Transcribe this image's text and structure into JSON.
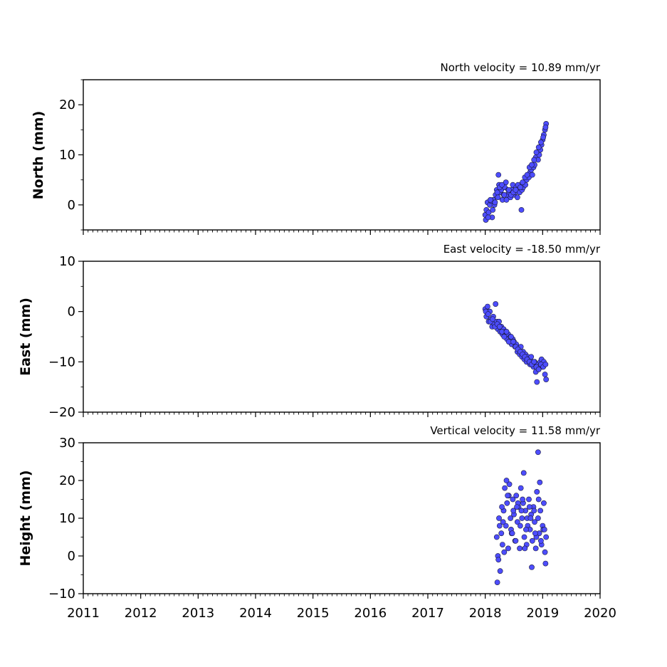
{
  "chart_data": [
    {
      "type": "scatter",
      "id": "north",
      "ylabel": "North (mm)",
      "annotation": "North velocity = 10.89 mm/yr",
      "xlim": [
        2011,
        2020
      ],
      "ylim": [
        -5,
        25
      ],
      "yticks": [
        0,
        10,
        20
      ],
      "xticks": [
        2011,
        2012,
        2013,
        2014,
        2015,
        2016,
        2017,
        2018,
        2019,
        2020
      ],
      "show_xtick_labels": false,
      "marker_color": "#4d4dff",
      "series": [
        {
          "x": [
            2018.0,
            2018.02,
            2018.04,
            2018.06,
            2018.08,
            2018.1,
            2018.12,
            2018.14,
            2018.16,
            2018.18,
            2018.2,
            2018.22,
            2018.24,
            2018.26,
            2018.28,
            2018.3,
            2018.32,
            2018.34,
            2018.36,
            2018.38,
            2018.4,
            2018.42,
            2018.44,
            2018.46,
            2018.48,
            2018.5,
            2018.52,
            2018.54,
            2018.56,
            2018.58,
            2018.6,
            2018.62,
            2018.64,
            2018.66,
            2018.68,
            2018.7,
            2018.72,
            2018.74,
            2018.76,
            2018.78,
            2018.8,
            2018.82,
            2018.84,
            2018.86,
            2018.88,
            2018.9,
            2018.92,
            2018.94,
            2018.96,
            2018.98,
            2019.0,
            2019.02,
            2019.04,
            2019.06,
            2018.01,
            2018.05,
            2018.09,
            2018.13,
            2018.17,
            2018.21,
            2018.25,
            2018.29,
            2018.33,
            2018.37,
            2018.41,
            2018.45,
            2018.49,
            2018.53,
            2018.57,
            2018.61,
            2018.65,
            2018.69,
            2018.73,
            2018.77,
            2018.81,
            2018.85,
            2018.89,
            2018.93,
            2018.97,
            2019.01,
            2019.05,
            2018.23,
            2018.63
          ],
          "y": [
            -2.0,
            -1.0,
            0.5,
            -1.5,
            0.0,
            0.8,
            -2.5,
            1.0,
            0.0,
            2.0,
            3.0,
            1.5,
            4.0,
            2.5,
            3.0,
            1.0,
            2.0,
            3.5,
            4.5,
            2.0,
            3.0,
            2.5,
            1.5,
            3.0,
            4.0,
            2.0,
            2.5,
            3.5,
            1.5,
            3.0,
            2.5,
            4.0,
            3.0,
            3.5,
            4.5,
            4.0,
            5.0,
            6.0,
            5.5,
            6.5,
            7.0,
            6.0,
            7.5,
            8.0,
            9.5,
            10.5,
            9.0,
            10.0,
            11.0,
            12.0,
            13.0,
            14.0,
            15.0,
            16.2,
            -3.0,
            -2.5,
            1.0,
            -1.0,
            0.5,
            2.5,
            3.5,
            4.0,
            2.0,
            1.0,
            3.0,
            2.0,
            2.5,
            3.0,
            4.0,
            3.5,
            4.5,
            5.5,
            6.0,
            7.5,
            8.0,
            9.0,
            10.5,
            11.5,
            12.5,
            13.5,
            15.5,
            6.0,
            -1.0
          ]
        }
      ]
    },
    {
      "type": "scatter",
      "id": "east",
      "ylabel": "East (mm)",
      "annotation": "East velocity = -18.50 mm/yr",
      "xlim": [
        2011,
        2020
      ],
      "ylim": [
        -20,
        10
      ],
      "yticks": [
        -20,
        -10,
        0,
        10
      ],
      "xticks": [
        2011,
        2012,
        2013,
        2014,
        2015,
        2016,
        2017,
        2018,
        2019,
        2020
      ],
      "show_xtick_labels": false,
      "marker_color": "#4d4dff",
      "series": [
        {
          "x": [
            2018.0,
            2018.02,
            2018.04,
            2018.06,
            2018.08,
            2018.1,
            2018.12,
            2018.14,
            2018.16,
            2018.18,
            2018.2,
            2018.22,
            2018.24,
            2018.26,
            2018.28,
            2018.3,
            2018.32,
            2018.34,
            2018.36,
            2018.38,
            2018.4,
            2018.42,
            2018.44,
            2018.46,
            2018.48,
            2018.5,
            2018.52,
            2018.54,
            2018.56,
            2018.58,
            2018.6,
            2018.62,
            2018.64,
            2018.66,
            2018.68,
            2018.7,
            2018.72,
            2018.74,
            2018.76,
            2018.78,
            2018.8,
            2018.82,
            2018.84,
            2018.86,
            2018.88,
            2018.9,
            2018.92,
            2018.94,
            2018.96,
            2018.98,
            2019.0,
            2019.02,
            2019.04,
            2019.06,
            2018.01,
            2018.05,
            2018.09,
            2018.13,
            2018.17,
            2018.21,
            2018.25,
            2018.29,
            2018.33,
            2018.37,
            2018.41,
            2018.45,
            2018.49,
            2018.53,
            2018.57,
            2018.61,
            2018.65,
            2018.69,
            2018.73,
            2018.77,
            2018.81,
            2018.85,
            2018.89,
            2018.93,
            2018.97,
            2019.01,
            2019.05
          ],
          "y": [
            0.5,
            -1.0,
            1.0,
            -2.0,
            0.0,
            -1.5,
            -3.0,
            -1.0,
            -2.5,
            1.5,
            -2.0,
            -3.5,
            -2.0,
            -4.0,
            -3.0,
            -4.5,
            -3.5,
            -5.0,
            -4.0,
            -5.5,
            -4.5,
            -6.0,
            -5.0,
            -6.5,
            -5.5,
            -6.0,
            -7.0,
            -6.5,
            -8.0,
            -7.5,
            -8.5,
            -7.0,
            -9.0,
            -8.0,
            -9.5,
            -8.5,
            -10.0,
            -9.0,
            -9.5,
            -10.5,
            -9.0,
            -10.0,
            -11.0,
            -10.0,
            -12.0,
            -14.0,
            -10.5,
            -11.0,
            -10.0,
            -9.5,
            -11.0,
            -10.0,
            -12.5,
            -13.5,
            0.0,
            -0.5,
            -2.0,
            -1.5,
            -3.0,
            -2.5,
            -3.0,
            -4.0,
            -5.0,
            -4.0,
            -6.0,
            -5.0,
            -6.0,
            -7.0,
            -7.5,
            -8.0,
            -8.5,
            -9.0,
            -9.5,
            -10.0,
            -10.5,
            -10.0,
            -11.0,
            -11.5,
            -10.5,
            -11.0,
            -10.5
          ]
        }
      ]
    },
    {
      "type": "scatter",
      "id": "height",
      "ylabel": "Height (mm)",
      "annotation": "Vertical velocity = 11.58 mm/yr",
      "xlim": [
        2011,
        2020
      ],
      "ylim": [
        -10,
        30
      ],
      "yticks": [
        -10,
        0,
        10,
        20,
        30
      ],
      "xticks": [
        2011,
        2012,
        2013,
        2014,
        2015,
        2016,
        2017,
        2018,
        2019,
        2020
      ],
      "show_xtick_labels": true,
      "marker_color": "#4d4dff",
      "series": [
        {
          "x": [
            2018.2,
            2018.22,
            2018.24,
            2018.26,
            2018.28,
            2018.3,
            2018.32,
            2018.34,
            2018.36,
            2018.38,
            2018.4,
            2018.42,
            2018.44,
            2018.46,
            2018.48,
            2018.5,
            2018.52,
            2018.54,
            2018.56,
            2018.58,
            2018.6,
            2018.62,
            2018.64,
            2018.66,
            2018.68,
            2018.7,
            2018.72,
            2018.74,
            2018.76,
            2018.78,
            2018.8,
            2018.82,
            2018.84,
            2018.86,
            2018.88,
            2018.9,
            2018.92,
            2018.94,
            2018.96,
            2018.98,
            2019.0,
            2019.02,
            2019.04,
            2019.06,
            2018.21,
            2018.25,
            2018.29,
            2018.33,
            2018.37,
            2018.41,
            2018.45,
            2018.49,
            2018.53,
            2018.57,
            2018.61,
            2018.65,
            2018.69,
            2018.73,
            2018.77,
            2018.81,
            2018.85,
            2018.89,
            2018.93,
            2018.97,
            2019.01,
            2019.05,
            2018.23,
            2018.31,
            2018.39,
            2018.47,
            2018.55,
            2018.63,
            2018.71,
            2018.79,
            2018.87,
            2018.95,
            2019.03,
            2018.92,
            2018.67
          ],
          "y": [
            5.0,
            0.0,
            10.0,
            -4.0,
            6.0,
            3.0,
            12.0,
            18.0,
            8.0,
            14.0,
            2.0,
            19.0,
            10.0,
            6.0,
            15.0,
            11.0,
            4.0,
            16.0,
            9.0,
            13.0,
            2.0,
            18.0,
            10.0,
            14.0,
            5.0,
            12.0,
            3.0,
            8.0,
            15.0,
            7.0,
            11.0,
            4.0,
            13.0,
            9.0,
            2.0,
            17.0,
            10.0,
            6.0,
            12.0,
            3.0,
            8.0,
            14.0,
            1.0,
            5.0,
            -7.0,
            8.0,
            13.0,
            1.0,
            20.0,
            16.0,
            7.0,
            12.0,
            4.0,
            14.0,
            8.0,
            15.0,
            2.0,
            10.0,
            13.0,
            -3.0,
            12.0,
            5.0,
            15.0,
            4.0,
            7.0,
            -2.0,
            -1.0,
            9.0,
            16.0,
            6.0,
            13.0,
            12.0,
            7.0,
            10.0,
            6.0,
            19.5,
            7.0,
            27.5,
            22.0
          ]
        }
      ]
    }
  ]
}
